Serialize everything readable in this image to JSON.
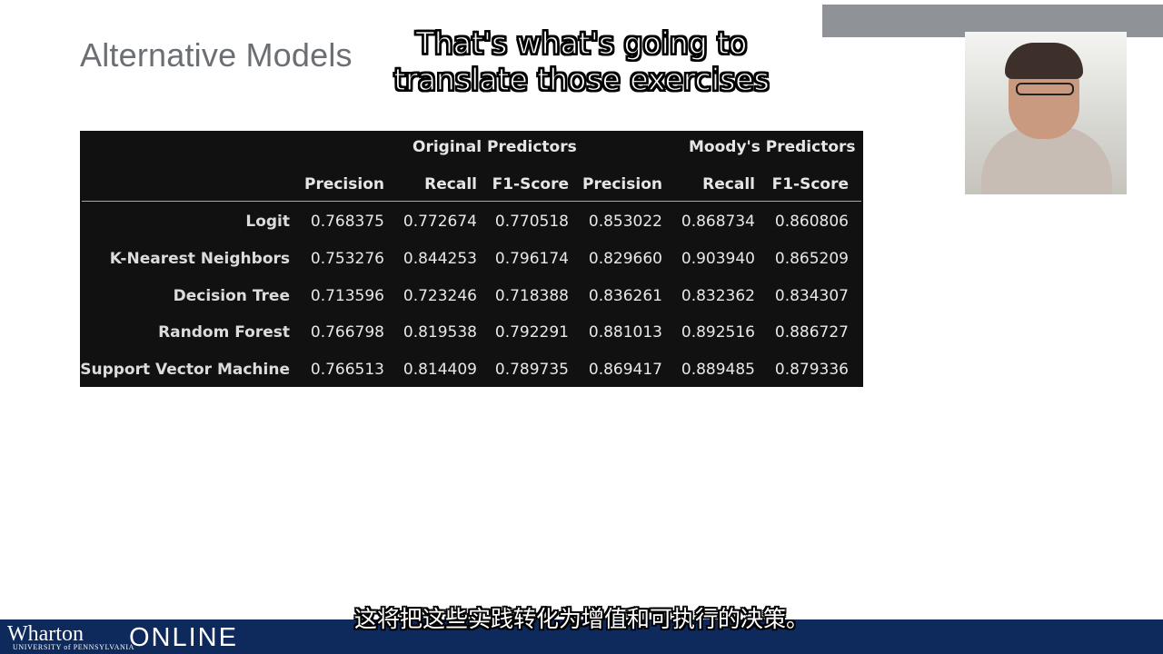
{
  "slide": {
    "title": "Alternative Models"
  },
  "captions": {
    "english_line1": "That's what's going to",
    "english_line2": "translate those exercises",
    "chinese": "这将把这些实践转化为增值和可执行的决策。"
  },
  "table": {
    "group_headers": [
      "Original Predictors",
      "Moody's Predictors"
    ],
    "columns": [
      "Precision",
      "Recall",
      "F1-Score",
      "Precision",
      "Recall",
      "F1-Score"
    ],
    "rows": [
      {
        "label": "Logit",
        "values": [
          "0.768375",
          "0.772674",
          "0.770518",
          "0.853022",
          "0.868734",
          "0.860806"
        ]
      },
      {
        "label": "K-Nearest Neighbors",
        "values": [
          "0.753276",
          "0.844253",
          "0.796174",
          "0.829660",
          "0.903940",
          "0.865209"
        ]
      },
      {
        "label": "Decision Tree",
        "values": [
          "0.713596",
          "0.723246",
          "0.718388",
          "0.836261",
          "0.832362",
          "0.834307"
        ]
      },
      {
        "label": "Random Forest",
        "values": [
          "0.766798",
          "0.819538",
          "0.792291",
          "0.881013",
          "0.892516",
          "0.886727"
        ]
      },
      {
        "label": "Support Vector Machine",
        "values": [
          "0.766513",
          "0.814409",
          "0.789735",
          "0.869417",
          "0.889485",
          "0.879336"
        ]
      }
    ]
  },
  "branding": {
    "logo_text": "Wharton",
    "logo_subtext": "UNIVERSITY of PENNSYLVANIA",
    "online_text": "ONLINE",
    "bar_color": "#0e2a5c"
  },
  "video": {
    "presenter_icon": "presenter-video-icon"
  }
}
